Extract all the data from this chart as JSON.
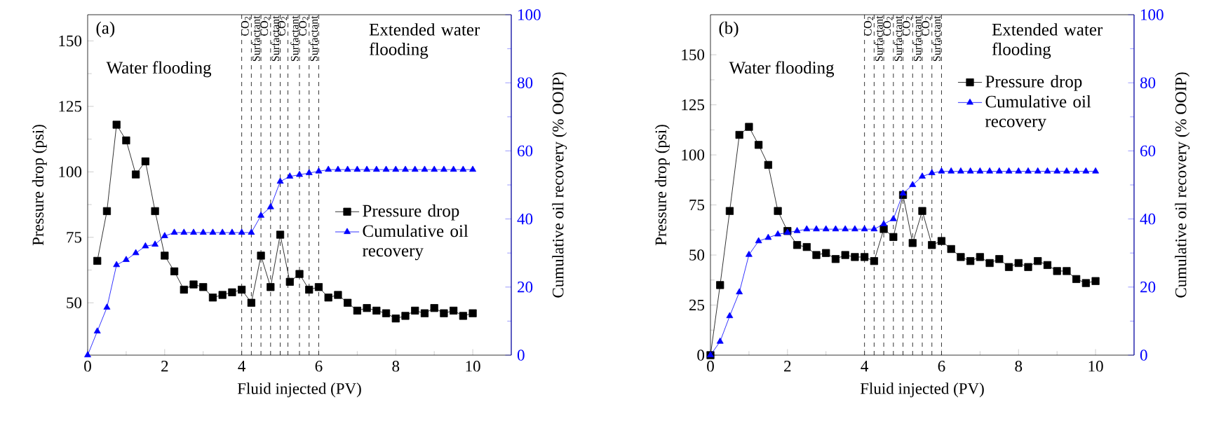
{
  "chart_data": [
    {
      "type": "line",
      "xlabel": "Fluid injected (PV)",
      "ylabel": "Pressure drop (psi)",
      "y2label": "Cumulative oil recovery (% OOIP)",
      "xlim": [
        0,
        11
      ],
      "xticks": [
        0,
        2,
        4,
        6,
        8,
        10
      ],
      "ylim": [
        30,
        160
      ],
      "yticks": [
        50,
        75,
        100,
        125,
        150
      ],
      "y2lim": [
        0,
        100
      ],
      "y2ticks": [
        0,
        20,
        40,
        60,
        80,
        100
      ],
      "legend": "right",
      "line_style": "solid",
      "annotations": [
        "(a)",
        "Water flooding",
        "Extended water flooding"
      ],
      "ref_lines": [
        {
          "axis": "x",
          "value": 4,
          "line_style": "dashed",
          "color": "#000000"
        },
        {
          "axis": "x",
          "value": 4.25,
          "label": "CO$_{2}$",
          "line_style": "dashed",
          "color": "#000000"
        },
        {
          "axis": "x",
          "value": 4.5,
          "label": "Surfactant",
          "line_style": "dashed",
          "color": "#000000"
        },
        {
          "axis": "x",
          "value": 4.75,
          "label": "CO$_{2}$",
          "line_style": "dashed",
          "color": "#000000"
        },
        {
          "axis": "x",
          "value": 5,
          "label": "Surfactant",
          "line_style": "dashed",
          "color": "#000000"
        },
        {
          "axis": "x",
          "value": 5.2,
          "label": "CO$_{2}$",
          "line_style": "dashed",
          "color": "#000000"
        },
        {
          "axis": "x",
          "value": 5.5,
          "label": "Surfactant",
          "line_style": "dashed",
          "color": "#000000"
        },
        {
          "axis": "x",
          "value": 5.75,
          "label": "CO$_{2}$",
          "line_style": "dashed",
          "color": "#000000"
        },
        {
          "axis": "x",
          "value": 6,
          "label": "Surfactant",
          "line_style": "dashed",
          "color": "#000000"
        }
      ],
      "series": [
        {
          "name": "Pressure drop",
          "color": "#000000",
          "marker": "square",
          "x": [
            0.25,
            0.5,
            0.75,
            1,
            1.25,
            1.5,
            1.75,
            2,
            2.25,
            2.5,
            2.75,
            3,
            3.25,
            3.5,
            3.75,
            4,
            4.25,
            4.5,
            4.75,
            5,
            5.25,
            5.5,
            5.75,
            6,
            6.25,
            6.5,
            6.75,
            7,
            7.25,
            7.5,
            7.75,
            8,
            8.25,
            8.5,
            8.75,
            9,
            9.25,
            9.5,
            9.75,
            10
          ],
          "values": [
            66,
            85,
            118,
            112,
            99,
            104,
            85,
            68,
            62,
            55,
            57,
            56,
            52,
            53,
            54,
            55,
            50,
            68,
            56,
            76,
            58,
            61,
            55,
            56,
            52,
            53,
            50,
            47,
            48,
            47,
            46,
            44,
            45,
            47,
            46,
            48,
            46,
            47,
            45,
            46
          ]
        },
        {
          "name": "Cumulative oil recovery",
          "color": "#0000ff",
          "marker": "triangle",
          "axis": "y2",
          "x": [
            0,
            0.25,
            0.5,
            0.75,
            1,
            1.25,
            1.5,
            1.75,
            2,
            2.25,
            2.5,
            2.75,
            3,
            3.25,
            3.5,
            3.75,
            4,
            4.25,
            4.5,
            4.75,
            5,
            5.25,
            5.5,
            5.75,
            6,
            6.25,
            6.5,
            6.75,
            7,
            7.25,
            7.5,
            7.75,
            8,
            8.25,
            8.5,
            8.75,
            9,
            9.25,
            9.5,
            9.75,
            10
          ],
          "values": [
            0,
            7,
            14,
            26.5,
            28,
            30,
            32,
            32.5,
            35,
            36,
            36,
            36,
            36,
            36,
            36,
            36,
            36,
            36,
            41,
            43.5,
            51,
            52.5,
            53,
            53.5,
            54,
            54.5,
            54.5,
            54.5,
            54.5,
            54.5,
            54.5,
            54.5,
            54.5,
            54.5,
            54.5,
            54.5,
            54.5,
            54.5,
            54.5,
            54.5,
            54.5
          ]
        }
      ]
    },
    {
      "type": "line",
      "xlabel": "Fluid injected (PV)",
      "ylabel": "Pressure drop (psi)",
      "y2label": "Cumulative oil recovery (% OOIP)",
      "xlim": [
        0,
        11
      ],
      "xticks": [
        0,
        2,
        4,
        6,
        8,
        10
      ],
      "ylim": [
        0,
        170
      ],
      "yticks": [
        0,
        25,
        50,
        75,
        100,
        125,
        150
      ],
      "y2lim": [
        0,
        100
      ],
      "y2ticks": [
        0,
        20,
        40,
        60,
        80,
        100
      ],
      "legend": "top right",
      "line_style": "solid",
      "annotations": [
        "(b)",
        "Water flooding",
        "Extended water flooding"
      ],
      "ref_lines": [
        {
          "axis": "x",
          "value": 4,
          "line_style": "dashed",
          "color": "#000000"
        },
        {
          "axis": "x",
          "value": 4.25,
          "label": "CO$_{2}$",
          "line_style": "dashed",
          "color": "#000000"
        },
        {
          "axis": "x",
          "value": 4.5,
          "label": "Surfactant",
          "line_style": "dashed",
          "color": "#000000"
        },
        {
          "axis": "x",
          "value": 4.75,
          "label": "CO$_{2}$",
          "line_style": "dashed",
          "color": "#000000"
        },
        {
          "axis": "x",
          "value": 5,
          "label": "Surfactant",
          "line_style": "dashed",
          "color": "#000000"
        },
        {
          "axis": "x",
          "value": 5.25,
          "label": "CO$_{2}$",
          "line_style": "dashed",
          "color": "#000000"
        },
        {
          "axis": "x",
          "value": 5.5,
          "label": "Surfactant",
          "line_style": "dashed",
          "color": "#000000"
        },
        {
          "axis": "x",
          "value": 5.75,
          "label": "CO$_{2}$",
          "line_style": "dashed",
          "color": "#000000"
        },
        {
          "axis": "x",
          "value": 6,
          "label": "Surfactant",
          "line_style": "dashed",
          "color": "#000000"
        }
      ],
      "series": [
        {
          "name": "Pressure drop",
          "color": "#000000",
          "marker": "square",
          "x": [
            0,
            0.25,
            0.5,
            0.75,
            1,
            1.25,
            1.5,
            1.75,
            2,
            2.25,
            2.5,
            2.75,
            3,
            3.25,
            3.5,
            3.75,
            4,
            4.25,
            4.5,
            4.75,
            5,
            5.25,
            5.5,
            5.75,
            6,
            6.25,
            6.5,
            6.75,
            7,
            7.25,
            7.5,
            7.75,
            8,
            8.25,
            8.5,
            8.75,
            9,
            9.25,
            9.5,
            9.75,
            10
          ],
          "values": [
            0,
            35,
            72,
            110,
            114,
            105,
            95,
            72,
            62,
            55,
            54,
            50,
            51,
            48,
            50,
            49,
            49,
            47,
            63,
            59,
            80,
            56,
            72,
            55,
            57,
            53,
            49,
            47,
            49,
            46,
            48,
            44,
            46,
            44,
            47,
            45,
            42,
            42,
            38,
            36,
            37
          ]
        },
        {
          "name": "Cumulative oil recovery",
          "color": "#0000ff",
          "marker": "triangle",
          "axis": "y2",
          "x": [
            0,
            0.25,
            0.5,
            0.75,
            1,
            1.25,
            1.5,
            1.75,
            2,
            2.25,
            2.5,
            2.75,
            3,
            3.25,
            3.5,
            3.75,
            4,
            4.25,
            4.5,
            4.75,
            5,
            5.25,
            5.5,
            5.75,
            6,
            6.25,
            6.5,
            6.75,
            7,
            7.25,
            7.5,
            7.75,
            8,
            8.25,
            8.5,
            8.75,
            9,
            9.25,
            9.5,
            9.75,
            10
          ],
          "values": [
            0,
            4,
            11.5,
            18.5,
            29.5,
            33.5,
            34.5,
            35.5,
            36,
            36.5,
            37,
            37,
            37,
            37,
            37,
            37,
            37,
            37,
            38.5,
            40,
            47.5,
            50,
            52.5,
            53.5,
            54,
            54,
            54,
            54,
            54,
            54,
            54,
            54,
            54,
            54,
            54,
            54,
            54,
            54,
            54,
            54,
            54
          ]
        }
      ]
    }
  ]
}
